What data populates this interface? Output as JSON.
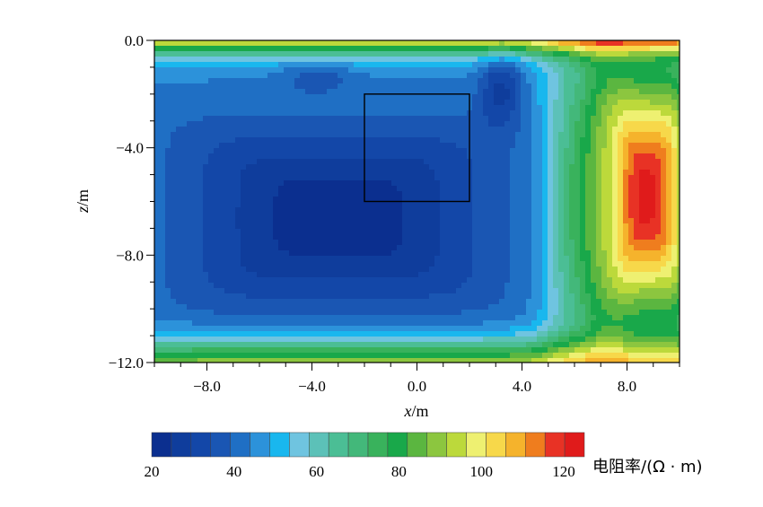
{
  "chart_data": {
    "type": "heatmap",
    "xlabel_var": "x",
    "xlabel_unit": "/m",
    "ylabel_var": "z",
    "ylabel_unit": "/m",
    "xlim": [
      -10,
      10
    ],
    "ylim": [
      -12,
      0
    ],
    "x_ticks": [
      -8,
      -4,
      0,
      4,
      8
    ],
    "x_tick_labels": [
      "−8.0",
      "−4.0",
      "0.0",
      "4.0",
      "8.0"
    ],
    "y_ticks": [
      0,
      -4,
      -8,
      -12
    ],
    "y_tick_labels": [
      "0.0",
      "−4.0",
      "−8.0",
      "−12.0"
    ],
    "x_minor_step": 1,
    "y_minor_step": 1,
    "colorbar": {
      "title": "电阻率/(Ω · m)",
      "min": 20,
      "max": 125,
      "ticks": [
        20,
        40,
        60,
        80,
        100,
        120
      ],
      "tick_labels": [
        "20",
        "40",
        "60",
        "80",
        "100",
        "120"
      ],
      "levels": 21,
      "colors": [
        "#0b2f8f",
        "#0f3d9c",
        "#1347a8",
        "#1a56b3",
        "#1f6fc4",
        "#2c92da",
        "#19b7ee",
        "#6fc4e0",
        "#5cc1b8",
        "#4bbe95",
        "#43b87a",
        "#39b25c",
        "#19a84a",
        "#5bb640",
        "#8cc63f",
        "#bcd93b",
        "#eef071",
        "#f7d84a",
        "#f5b32c",
        "#ef7d1e",
        "#e83225",
        "#e01b1b"
      ]
    },
    "field": {
      "background": 48,
      "components": [
        {
          "name": "conductive-body",
          "x0": -3,
          "z0": -6.6,
          "ax": 6.0,
          "az": 3.5,
          "power": 6,
          "amp": -27
        },
        {
          "name": "conductive-ridge",
          "x0": 3.2,
          "z0": -1.8,
          "ax": 0.8,
          "az": 1.4,
          "power": 2,
          "amp": -16
        },
        {
          "name": "resistive-body",
          "x0": 8.8,
          "z0": -5.8,
          "ax": 1.8,
          "az": 4.8,
          "power": 4,
          "amp": 80
        },
        {
          "name": "resistive-flank",
          "x0": 6.2,
          "z0": -6,
          "ax": 1.3,
          "az": 6.5,
          "power": 3,
          "amp": 26
        },
        {
          "name": "bottom-layer",
          "x0": 0,
          "z0": -12.3,
          "ax": 40,
          "az": 1.1,
          "power": 2,
          "amp": 52
        },
        {
          "name": "surface-layer",
          "x0": 0,
          "z0": 0.2,
          "ax": 40,
          "az": 0.7,
          "power": 2,
          "amp": 62
        },
        {
          "name": "surface-dip",
          "x0": -3.8,
          "z0": -1.4,
          "ax": 1.3,
          "az": 0.6,
          "power": 2,
          "amp": -8
        }
      ]
    },
    "annotation_box": {
      "x": [
        -2,
        2
      ],
      "z": [
        -6,
        -2
      ]
    }
  }
}
